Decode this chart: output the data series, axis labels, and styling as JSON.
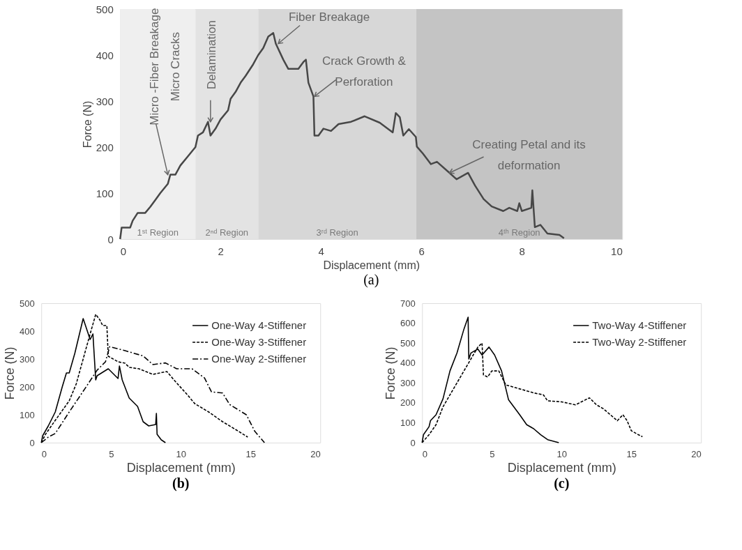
{
  "chart_data": [
    {
      "type": "line",
      "title": "(a)",
      "xlabel": "Displacement (mm)",
      "ylabel": "Force (N)",
      "xlim": [
        0,
        10
      ],
      "ylim": [
        0,
        500
      ],
      "xticks": [
        0,
        2,
        4,
        6,
        8,
        10
      ],
      "yticks": [
        0,
        100,
        200,
        300,
        400,
        500
      ],
      "grid": false,
      "legend": false,
      "series": [
        {
          "color": "#474747",
          "line_style": "solid",
          "x": [
            0,
            0.03,
            0.2,
            0.25,
            0.35,
            0.5,
            0.6,
            0.7,
            0.8,
            0.95,
            1.0,
            1.1,
            1.2,
            1.35,
            1.5,
            1.55,
            1.65,
            1.75,
            1.8,
            1.9,
            2.0,
            2.15,
            2.2,
            2.3,
            2.4,
            2.5,
            2.65,
            2.75,
            2.85,
            2.95,
            3.05,
            3.1,
            3.25,
            3.35,
            3.55,
            3.65,
            3.7,
            3.75,
            3.85,
            3.87,
            3.95,
            4.05,
            4.2,
            4.35,
            4.6,
            4.87,
            5.17,
            5.43,
            5.49,
            5.57,
            5.64,
            5.75,
            5.89,
            5.91,
            6.03,
            6.19,
            6.31,
            6.56,
            6.7,
            6.93,
            7.07,
            7.24,
            7.4,
            7.63,
            7.75,
            7.91,
            7.95,
            8.0,
            8.19,
            8.21,
            8.26,
            8.37,
            8.51,
            8.75,
            8.84
          ],
          "values": [
            0,
            25,
            25,
            40,
            57,
            57,
            70,
            85,
            100,
            120,
            140,
            140,
            160,
            180,
            200,
            225,
            232,
            255,
            225,
            240,
            260,
            280,
            305,
            320,
            340,
            355,
            380,
            400,
            415,
            440,
            448,
            425,
            390,
            370,
            370,
            385,
            390,
            340,
            310,
            225,
            225,
            240,
            235,
            250,
            255,
            267,
            253,
            232,
            274,
            265,
            225,
            239,
            222,
            201,
            186,
            163,
            168,
            144,
            130,
            144,
            116,
            87,
            71,
            61,
            68,
            61,
            78,
            61,
            68,
            106,
            26,
            31,
            12,
            9,
            2
          ]
        }
      ],
      "bands": [
        {
          "axis": "x",
          "from": 0,
          "to": 1.5,
          "label": "1ˢᵗ Region",
          "color": "#efefef"
        },
        {
          "axis": "x",
          "from": 1.5,
          "to": 2.75,
          "label": "2ⁿᵈ Region",
          "color": "#e3e3e3"
        },
        {
          "axis": "x",
          "from": 2.75,
          "to": 5.9,
          "label": "3ʳᵈ Region",
          "color": "#d7d7d7"
        },
        {
          "axis": "x",
          "from": 5.9,
          "to": 10,
          "label": "4ᵗʰ Region",
          "color": "#c4c4c4"
        }
      ],
      "annotations": [
        {
          "text": "Micro -Fiber Breakage\nMicro Cracks",
          "x": 0.95,
          "y": 140
        },
        {
          "text": "Delamination",
          "x": 1.8,
          "y": 255
        },
        {
          "text": "Fiber Breakage",
          "x": 3.15,
          "y": 425
        },
        {
          "text": "Crack Growth &\nPerforation",
          "x": 3.87,
          "y": 310
        },
        {
          "text": "Creating Petal and its\ndeformation",
          "x": 6.56,
          "y": 144
        }
      ]
    },
    {
      "type": "line",
      "title": "(b)",
      "xlabel": "Displacement (mm)",
      "ylabel": "Force (N)",
      "xlim": [
        0,
        20
      ],
      "ylim": [
        0,
        500
      ],
      "xticks": [
        0,
        5,
        10,
        15,
        20
      ],
      "yticks": [
        0,
        100,
        200,
        300,
        400,
        500
      ],
      "grid": false,
      "legend": "top right",
      "series": [
        {
          "name": "One-Way 4-Stiffener",
          "color": "#000000",
          "line_style": "solid",
          "x": [
            0,
            0.1,
            0.5,
            1,
            1.5,
            1.8,
            2,
            2.4,
            3,
            3.5,
            3.7,
            3.9,
            4,
            4.8,
            5.5,
            5.6,
            5.8,
            6.3,
            6.9,
            7.3,
            7.7,
            8.2,
            8.25,
            8.3,
            8.6,
            8.9
          ],
          "values": [
            0,
            25,
            60,
            110,
            200,
            250,
            250,
            320,
            445,
            370,
            390,
            225,
            240,
            265,
            230,
            275,
            225,
            160,
            130,
            75,
            60,
            65,
            105,
            30,
            10,
            0
          ]
        },
        {
          "name": "One-Way 3-Stiffener",
          "color": "#000000",
          "line_style": "dashed",
          "x": [
            0,
            0.3,
            1,
            2,
            2.5,
            3,
            3.5,
            3.9,
            4.2,
            4.4,
            4.7,
            4.8,
            5.5,
            6,
            6.3,
            7,
            8,
            9,
            9.6,
            10.5,
            11,
            12,
            13,
            14,
            14.8
          ],
          "values": [
            0,
            30,
            80,
            150,
            210,
            300,
            390,
            460,
            440,
            420,
            420,
            310,
            290,
            285,
            270,
            265,
            245,
            255,
            220,
            170,
            140,
            110,
            75,
            45,
            20
          ]
        },
        {
          "name": "One-Way 2-Stiffener",
          "color": "#000000",
          "line_style": "dashdot",
          "x": [
            0,
            0.5,
            1,
            2,
            3.2,
            4,
            4.6,
            4.9,
            6,
            7.3,
            8,
            8.9,
            9.7,
            10.8,
            11.7,
            12.2,
            13,
            13.5,
            14.7,
            15.3,
            16
          ],
          "values": [
            0,
            20,
            33,
            110,
            199,
            260,
            290,
            344,
            330,
            311,
            280,
            286,
            265,
            265,
            232,
            182,
            178,
            137,
            100,
            41,
            0
          ]
        }
      ]
    },
    {
      "type": "line",
      "title": "(c)",
      "xlabel": "Displacement (mm)",
      "ylabel": "Force (N)",
      "xlim": [
        0,
        20
      ],
      "ylim": [
        0,
        700
      ],
      "xticks": [
        0,
        5,
        10,
        15,
        20
      ],
      "yticks": [
        0,
        100,
        200,
        300,
        400,
        500,
        600,
        700
      ],
      "grid": false,
      "legend": "top right",
      "series": [
        {
          "name": "Two-Way 4-Stiffener",
          "color": "#000000",
          "line_style": "solid",
          "x": [
            0,
            0.1,
            0.5,
            0.6,
            1,
            1.5,
            2,
            2.5,
            3,
            3.3,
            3.35,
            3.5,
            4,
            4.3,
            4.8,
            5.2,
            5.7,
            6.2,
            7,
            7.5,
            8,
            8.5,
            9,
            9.8
          ],
          "values": [
            0,
            40,
            80,
            110,
            140,
            220,
            360,
            450,
            570,
            630,
            420,
            450,
            470,
            440,
            480,
            440,
            360,
            215,
            140,
            90,
            70,
            40,
            15,
            0
          ]
        },
        {
          "name": "Two-Way 2-Stiffener",
          "color": "#000000",
          "line_style": "dashed",
          "x": [
            0,
            0.5,
            1,
            1.5,
            2,
            2.5,
            3,
            3.5,
            4,
            4.3,
            4.4,
            4.7,
            5,
            5.5,
            6,
            6.5,
            7,
            8,
            8.7,
            9,
            10,
            11,
            12,
            12.5,
            13,
            14,
            14.4,
            14.7,
            15,
            15.5,
            15.8
          ],
          "values": [
            0,
            40,
            90,
            180,
            240,
            300,
            360,
            420,
            480,
            500,
            340,
            330,
            360,
            360,
            290,
            280,
            270,
            250,
            240,
            210,
            205,
            190,
            225,
            190,
            170,
            110,
            140,
            110,
            60,
            40,
            30
          ]
        }
      ]
    }
  ]
}
